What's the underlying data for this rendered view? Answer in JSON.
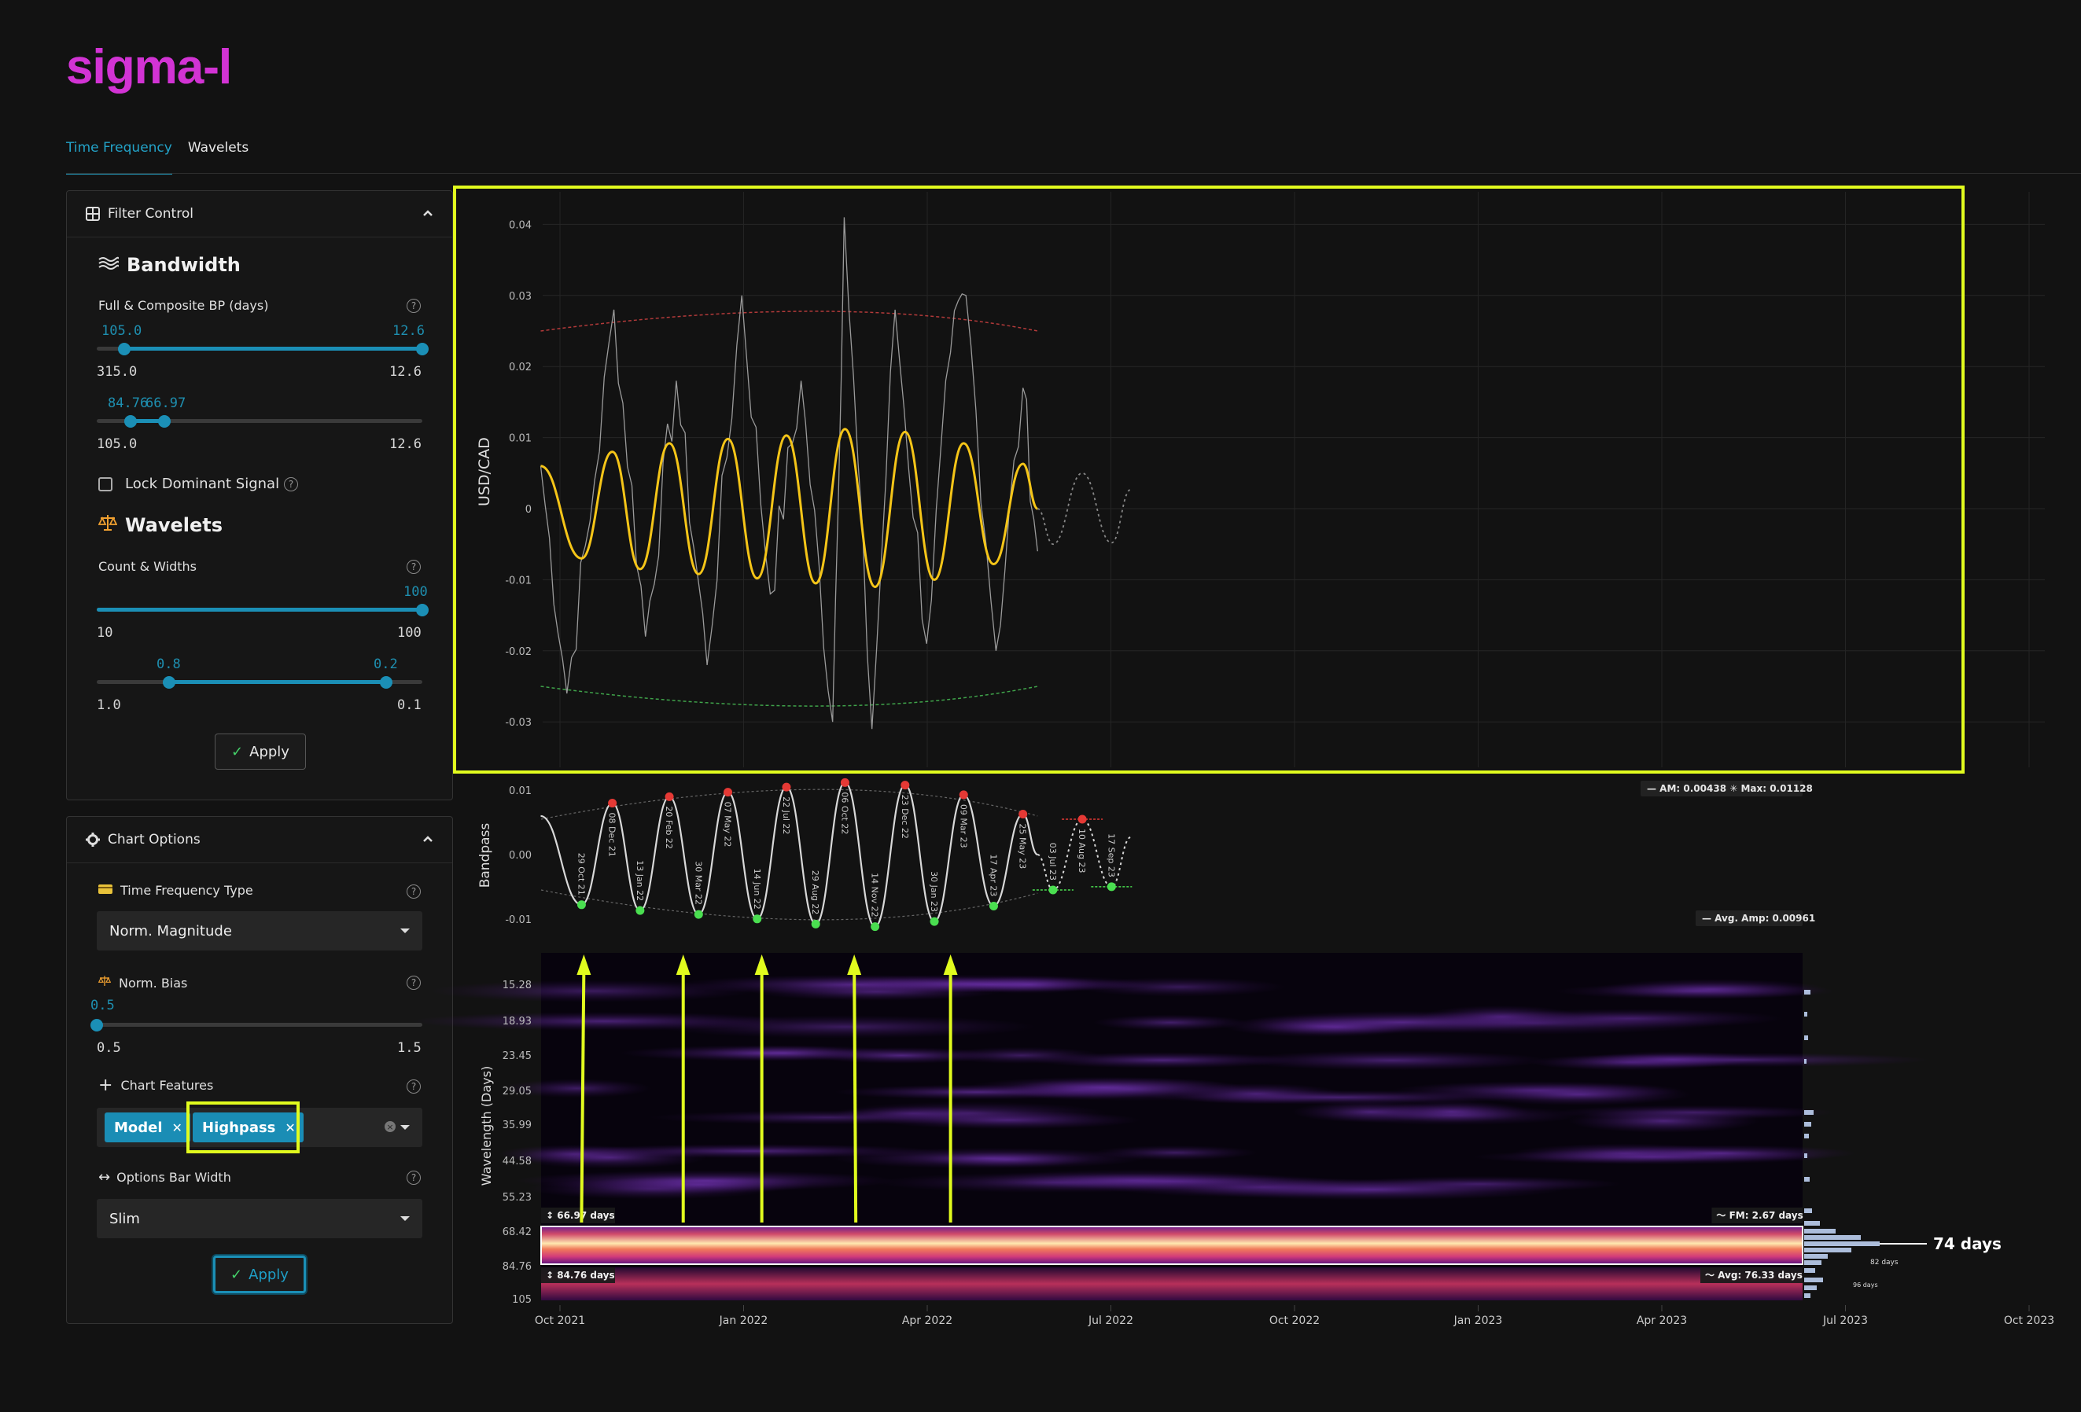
{
  "app": {
    "logo": "sigma-l"
  },
  "tabs": [
    {
      "label": "Time Frequency"
    },
    {
      "label": "Wavelets"
    }
  ],
  "filter_control": {
    "title": "Filter Control",
    "bandwidth": {
      "title": "Bandwidth",
      "label": "Full & Composite BP (days)",
      "slider1": {
        "low": "105.0",
        "high": "12.6",
        "min": "315.0",
        "max": "12.6"
      },
      "slider2": {
        "low": "84.76",
        "high": "66.97",
        "min": "105.0",
        "max": "12.6"
      }
    },
    "lock_label": "Lock Dominant Signal",
    "wavelets": {
      "title": "Wavelets",
      "label": "Count & Widths",
      "slider1": {
        "value": "100",
        "min": "10",
        "max": "100"
      },
      "slider2": {
        "low": "0.8",
        "high": "0.2",
        "min": "1.0",
        "max": "0.1"
      }
    },
    "apply": "Apply"
  },
  "chart_options": {
    "title": "Chart Options",
    "tf_type": {
      "label": "Time Frequency Type",
      "value": "Norm. Magnitude"
    },
    "norm_bias": {
      "label": "Norm. Bias",
      "value": "0.5",
      "min": "0.5",
      "max": "1.5"
    },
    "features": {
      "label": "Chart Features",
      "chips": [
        "Model",
        "Highpass"
      ]
    },
    "bar_width": {
      "label": "Options Bar Width",
      "value": "Slim"
    },
    "apply": "Apply"
  },
  "colors": {
    "accent": "#1b8fb6",
    "highlight": "#e1fb1e",
    "model": "#f5c518",
    "peak": "#e53935",
    "trough": "#4ade50"
  },
  "chart_data": [
    {
      "type": "line",
      "ylabel": "USD/CAD",
      "ylim": [
        -0.033,
        0.044
      ],
      "yticks": [
        "0.04",
        "0.03",
        "0.02",
        "0.01",
        "0",
        "-0.01",
        "-0.02",
        "-0.03"
      ],
      "xticks": [
        "Oct 2021",
        "Jan 2022",
        "Apr 2022",
        "Jul 2022",
        "Oct 2022",
        "Jan 2023",
        "Apr 2023",
        "Jul 2023",
        "Oct 2023"
      ],
      "series": [
        {
          "role": "model",
          "x": [
            "2021-09-06",
            "2021-10-29",
            "2021-12-08",
            "2022-01-13",
            "2022-02-20",
            "2022-03-30",
            "2022-05-07",
            "2022-06-14",
            "2022-07-22",
            "2022-08-29",
            "2022-10-06",
            "2022-11-14",
            "2022-12-23",
            "2023-01-30",
            "2023-03-09",
            "2023-04-17",
            "2023-05-25",
            "2023-06-13"
          ],
          "y": [
            0.006,
            -0.007,
            0.008,
            -0.0085,
            0.0092,
            -0.0092,
            0.0098,
            -0.0098,
            0.0103,
            -0.0105,
            0.0112,
            -0.011,
            0.0108,
            -0.01,
            0.0092,
            -0.0078,
            0.0063,
            0.0
          ]
        },
        {
          "role": "price",
          "x": [
            "2021-09-06",
            "2021-10-10",
            "2021-11-15",
            "2021-12-10",
            "2022-01-20",
            "2022-03-01",
            "2022-04-10",
            "2022-05-25",
            "2022-07-01",
            "2022-08-10",
            "2022-09-20",
            "2022-10-05",
            "2022-11-10",
            "2022-12-10",
            "2023-01-20",
            "2023-02-20",
            "2023-03-12",
            "2023-04-20",
            "2023-05-25",
            "2023-06-13"
          ],
          "y": [
            0.006,
            -0.026,
            0.004,
            0.028,
            -0.018,
            0.018,
            -0.022,
            0.03,
            -0.012,
            0.018,
            -0.03,
            0.041,
            -0.031,
            0.028,
            -0.019,
            0.022,
            0.03,
            -0.02,
            0.017,
            -0.006
          ]
        }
      ],
      "envelope": {
        "upper": [
          0.025,
          0.029,
          0.025
        ],
        "lower": [
          -0.025,
          -0.029,
          -0.025
        ]
      }
    },
    {
      "type": "line",
      "ylabel": "Bandpass",
      "yticks": [
        "0.01",
        "0.00",
        "-0.01"
      ],
      "ylim": [
        -0.0125,
        0.0125
      ],
      "stats": {
        "am": "0.00438",
        "max": "0.01128",
        "avg_amp": "0.00961"
      },
      "stats_text": {
        "am": "AM: 0.00438",
        "max": "Max: 0.01128",
        "avg_amp": "Avg. Amp: 0.00961"
      },
      "points": [
        {
          "d": "2021-10-29",
          "label": "29 Oct 21",
          "kind": "trough",
          "y": -0.0078
        },
        {
          "d": "2021-12-08",
          "label": "08 Dec 21",
          "kind": "peak",
          "y": 0.008
        },
        {
          "d": "2022-01-13",
          "label": "13 Jan 22",
          "kind": "trough",
          "y": -0.0087
        },
        {
          "d": "2022-02-20",
          "label": "20 Feb 22",
          "kind": "peak",
          "y": 0.009
        },
        {
          "d": "2022-03-30",
          "label": "30 Mar 22",
          "kind": "trough",
          "y": -0.0093
        },
        {
          "d": "2022-05-07",
          "label": "07 May 22",
          "kind": "peak",
          "y": 0.0097
        },
        {
          "d": "2022-06-14",
          "label": "14 Jun 22",
          "kind": "trough",
          "y": -0.01
        },
        {
          "d": "2022-07-22",
          "label": "22 Jul 22",
          "kind": "peak",
          "y": 0.0105
        },
        {
          "d": "2022-08-29",
          "label": "29 Aug 22",
          "kind": "trough",
          "y": -0.0108
        },
        {
          "d": "2022-10-06",
          "label": "06 Oct 22",
          "kind": "peak",
          "y": 0.0112
        },
        {
          "d": "2022-11-14",
          "label": "14 Nov 22",
          "kind": "trough",
          "y": -0.0112
        },
        {
          "d": "2022-12-23",
          "label": "23 Dec 22",
          "kind": "peak",
          "y": 0.0108
        },
        {
          "d": "2023-01-30",
          "label": "30 Jan 23",
          "kind": "trough",
          "y": -0.0104
        },
        {
          "d": "2023-03-09",
          "label": "09 Mar 23",
          "kind": "peak",
          "y": 0.0093
        },
        {
          "d": "2023-04-17",
          "label": "17 Apr 23",
          "kind": "trough",
          "y": -0.008
        },
        {
          "d": "2023-05-25",
          "label": "25 May 23",
          "kind": "peak",
          "y": 0.0063
        },
        {
          "d": "2023-07-03",
          "label": "03 Jul 23",
          "kind": "trough-proj",
          "y": -0.0055
        },
        {
          "d": "2023-08-10",
          "label": "10 Aug 23",
          "kind": "peak-proj",
          "y": 0.0055
        },
        {
          "d": "2023-09-17",
          "label": "17 Sep 23",
          "kind": "trough-proj",
          "y": -0.005
        }
      ]
    },
    {
      "type": "heatmap",
      "ylabel": "Wavelength (Days)",
      "yticks": [
        "15.28",
        "18.93",
        "23.45",
        "29.05",
        "35.99",
        "44.58",
        "55.23",
        "68.42",
        "84.76",
        "105"
      ],
      "band_labels": {
        "top": "66.97 days",
        "bottom": "84.76 days",
        "fm": "FM: 2.67 days",
        "avg": "Avg: 76.33 days"
      },
      "dominant": "74 days",
      "minor_labels": [
        "82 days",
        "96 days"
      ],
      "arrows_at": [
        "2021-11-01",
        "2022-03-10",
        "2022-06-20",
        "2022-10-18",
        "2023-02-20"
      ]
    }
  ]
}
